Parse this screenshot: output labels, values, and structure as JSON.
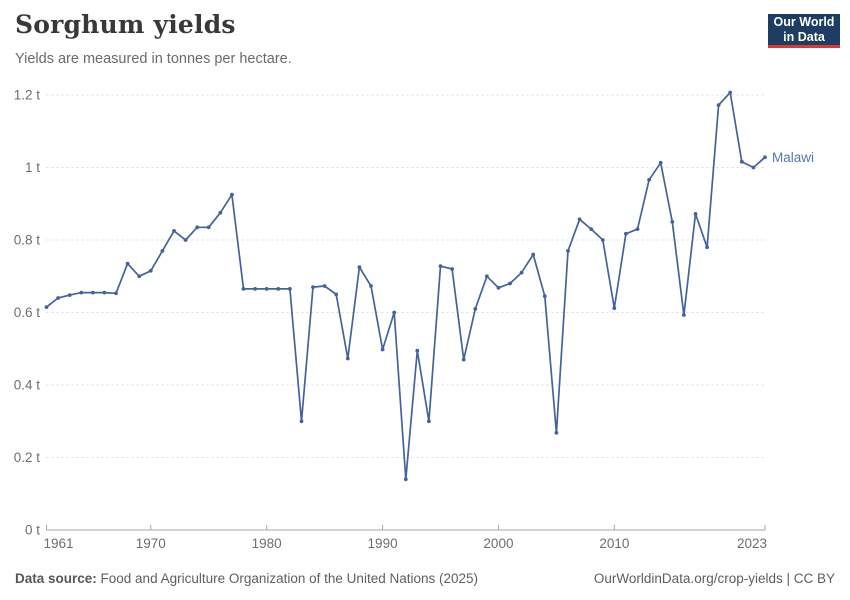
{
  "header": {
    "title": "Sorghum yields",
    "subtitle": "Yields are measured in tonnes per hectare.",
    "logo": {
      "line1": "Our World",
      "line2": "in Data",
      "bg": "#1D3D63",
      "accent": "#D93A34"
    }
  },
  "chart_data": {
    "type": "line",
    "title": "Sorghum yields",
    "ylabel": "tonnes per hectare",
    "unit": "t",
    "xlim": [
      1961,
      2023
    ],
    "ylim": [
      0,
      1.2
    ],
    "grid": "horizontal-dashed",
    "legend_position": "end-of-line-label",
    "x_ticks": [
      {
        "value": 1961,
        "label": "1961"
      },
      {
        "value": 1970,
        "label": "1970"
      },
      {
        "value": 1980,
        "label": "1980"
      },
      {
        "value": 1990,
        "label": "1990"
      },
      {
        "value": 2000,
        "label": "2000"
      },
      {
        "value": 2010,
        "label": "2010"
      },
      {
        "value": 2023,
        "label": "2023"
      }
    ],
    "y_ticks": [
      {
        "value": 0,
        "label": "0 t"
      },
      {
        "value": 0.2,
        "label": "0.2 t"
      },
      {
        "value": 0.4,
        "label": "0.4 t"
      },
      {
        "value": 0.6,
        "label": "0.6 t"
      },
      {
        "value": 0.8,
        "label": "0.8 t"
      },
      {
        "value": 1,
        "label": "1 t"
      },
      {
        "value": 1.2,
        "label": "1.2 t"
      }
    ],
    "x": [
      1961,
      1962,
      1963,
      1964,
      1965,
      1966,
      1967,
      1968,
      1969,
      1970,
      1971,
      1972,
      1973,
      1974,
      1975,
      1976,
      1977,
      1978,
      1979,
      1980,
      1981,
      1982,
      1983,
      1984,
      1985,
      1986,
      1987,
      1988,
      1989,
      1990,
      1991,
      1992,
      1993,
      1994,
      1995,
      1996,
      1997,
      1998,
      1999,
      2000,
      2001,
      2002,
      2003,
      2004,
      2005,
      2006,
      2007,
      2008,
      2009,
      2010,
      2011,
      2012,
      2013,
      2014,
      2015,
      2016,
      2017,
      2018,
      2019,
      2020,
      2021,
      2022,
      2023
    ],
    "series": [
      {
        "name": "Malawi",
        "color": "#44639D",
        "label_color": "#5878AD",
        "values": [
          0.615,
          0.64,
          0.648,
          0.655,
          0.655,
          0.655,
          0.653,
          0.735,
          0.7,
          0.715,
          0.77,
          0.825,
          0.8,
          0.835,
          0.835,
          0.875,
          0.925,
          0.665,
          0.665,
          0.665,
          0.665,
          0.665,
          0.3,
          0.67,
          0.673,
          0.65,
          0.473,
          0.725,
          0.673,
          0.498,
          0.6,
          0.14,
          0.495,
          0.3,
          0.728,
          0.72,
          0.47,
          0.61,
          0.7,
          0.668,
          0.68,
          0.71,
          0.76,
          0.645,
          0.268,
          0.77,
          0.857,
          0.83,
          0.8,
          0.612,
          0.817,
          0.83,
          0.966,
          1.013,
          0.85,
          0.593,
          0.872,
          0.78,
          1.172,
          1.207,
          1.016,
          1.0,
          1.028
        ]
      }
    ],
    "colors": {
      "grid": "#DCDCDC",
      "axis": "#A7A7A7",
      "tick_text": "#6E6E6E"
    }
  },
  "footer": {
    "source_label": "Data source:",
    "source_text": " Food and Agriculture Organization of the United Nations (2025)",
    "right_text": "OurWorldinData.org/crop-yields | CC BY"
  }
}
